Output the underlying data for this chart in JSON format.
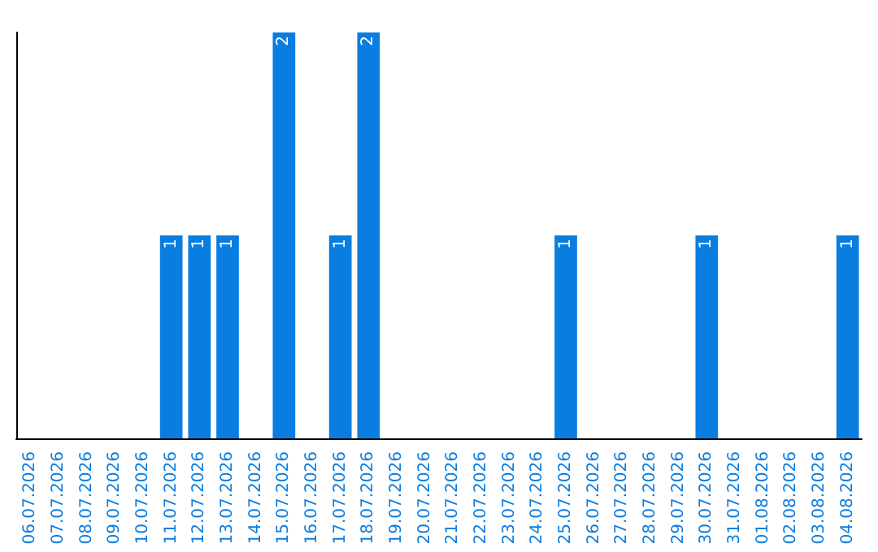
{
  "chart_data": {
    "type": "bar",
    "categories": [
      "06.07.2026",
      "07.07.2026",
      "08.07.2026",
      "09.07.2026",
      "10.07.2026",
      "11.07.2026",
      "12.07.2026",
      "13.07.2026",
      "14.07.2026",
      "15.07.2026",
      "16.07.2026",
      "17.07.2026",
      "18.07.2026",
      "19.07.2026",
      "20.07.2026",
      "21.07.2026",
      "22.07.2026",
      "23.07.2026",
      "24.07.2026",
      "25.07.2026",
      "26.07.2026",
      "27.07.2026",
      "28.07.2026",
      "29.07.2026",
      "30.07.2026",
      "31.07.2026",
      "01.08.2026",
      "02.08.2026",
      "03.08.2026",
      "04.08.2026"
    ],
    "values": [
      0,
      0,
      0,
      0,
      0,
      1,
      1,
      1,
      0,
      2,
      0,
      1,
      2,
      0,
      0,
      0,
      0,
      0,
      0,
      1,
      0,
      0,
      0,
      0,
      1,
      0,
      0,
      0,
      0,
      1
    ],
    "value_labels": [
      null,
      null,
      null,
      null,
      null,
      "1",
      "1",
      "1",
      null,
      "2",
      null,
      "1",
      "2",
      null,
      null,
      null,
      null,
      null,
      null,
      "1",
      null,
      null,
      null,
      null,
      "1",
      null,
      null,
      null,
      null,
      "1"
    ],
    "color": "#0a7de0",
    "ylim": [
      0,
      2
    ],
    "grid": false,
    "tick_labels": "x"
  }
}
